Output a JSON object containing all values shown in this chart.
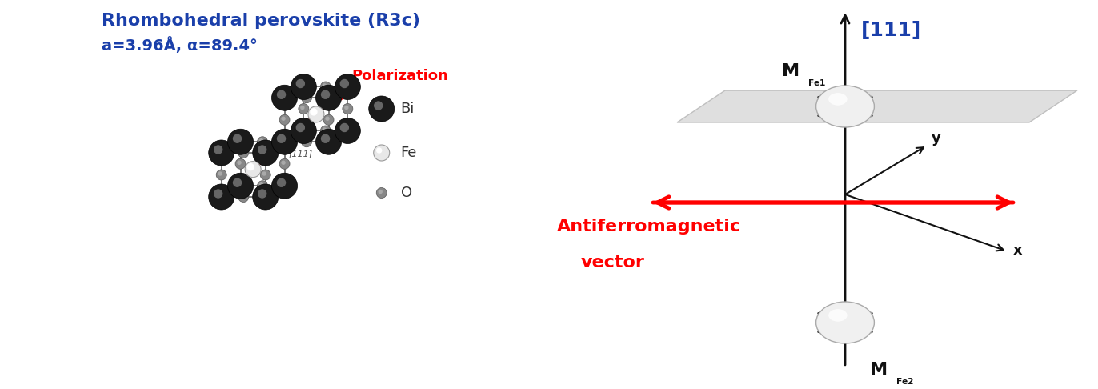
{
  "title_left_line1": "Rhombohedral perovskite (R3c)",
  "title_left_line2": "a=3.96Å, α=89.4°",
  "title_left_color": "#1a3faa",
  "polarization_label": "Polarization",
  "polarization_color": "red",
  "miller_label": "[111]",
  "miller_color": "#1a3faa",
  "afm_label_line1": "Antiferromagnetic",
  "afm_label_line2": "vector",
  "afm_color": "red",
  "bg_color": "#ffffff",
  "fig_width": 13.72,
  "fig_height": 4.86
}
